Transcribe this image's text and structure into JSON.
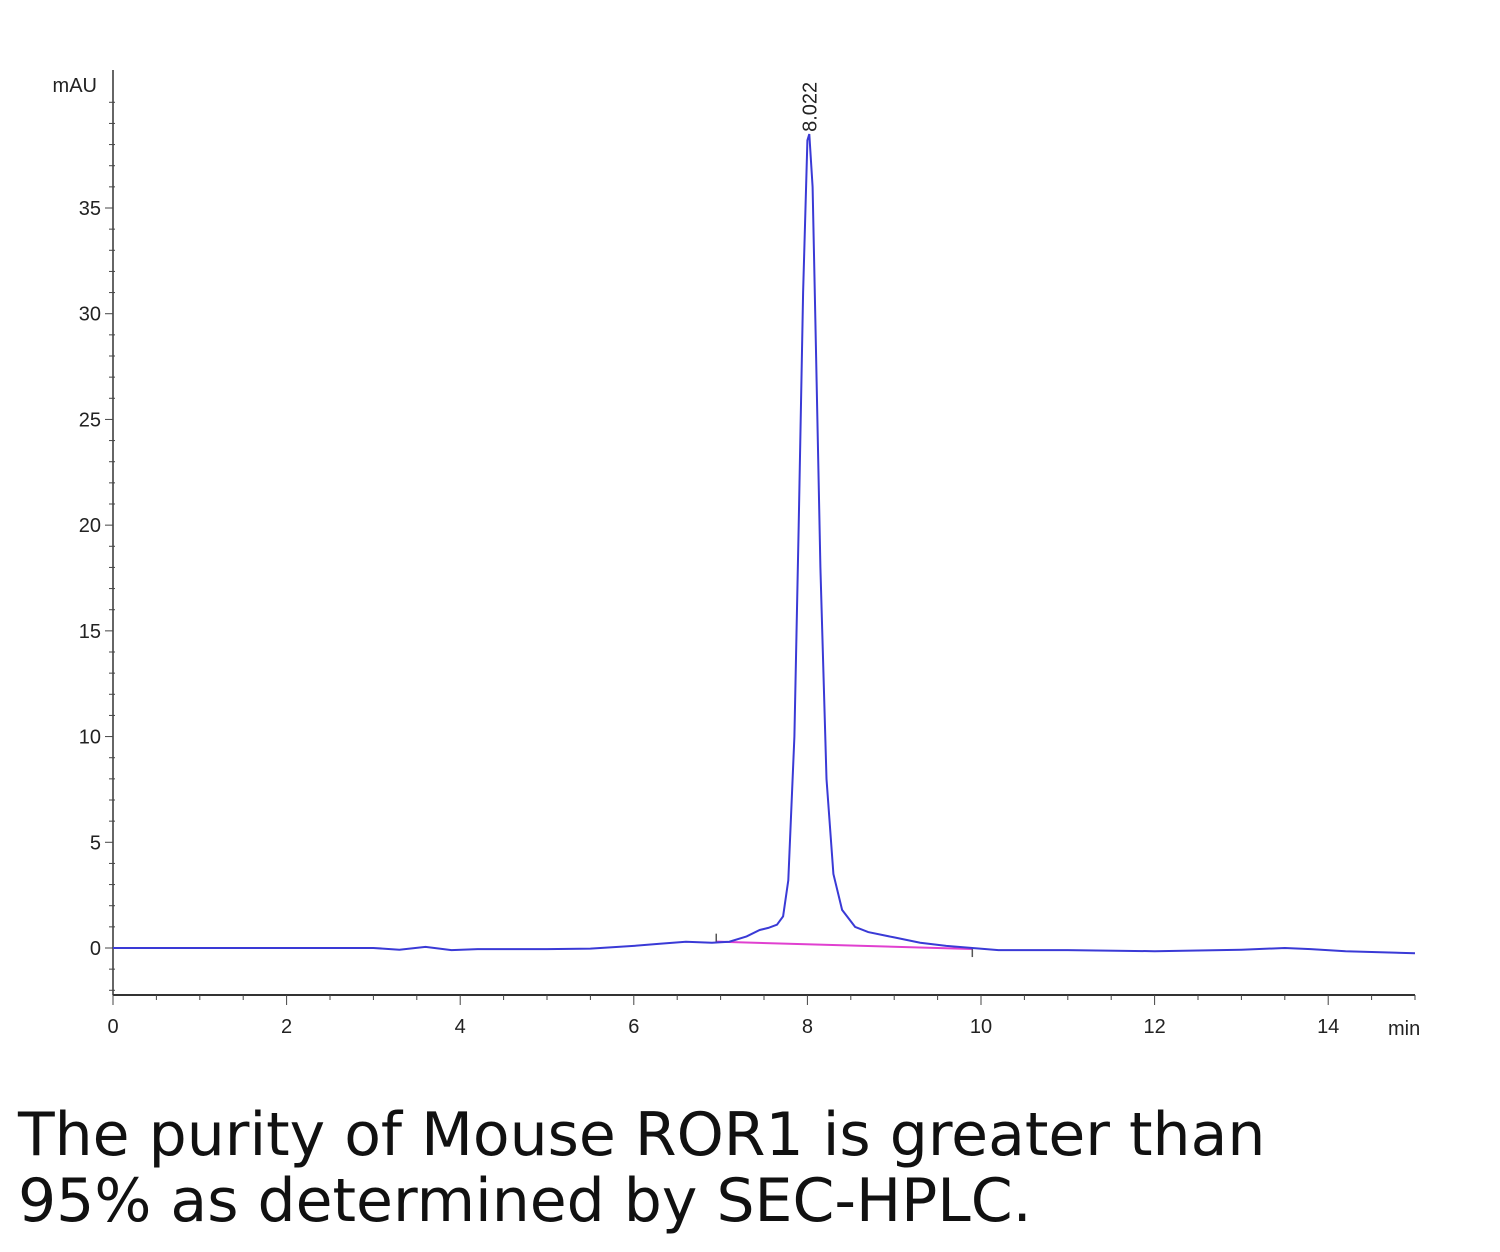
{
  "chart_data": {
    "type": "line",
    "title": "",
    "xlabel": "min",
    "ylabel": "mAU",
    "xlim": [
      0,
      15
    ],
    "ylim": [
      -2.2,
      41
    ],
    "x_ticks": [
      0,
      2,
      4,
      6,
      8,
      10,
      12,
      14
    ],
    "y_ticks": [
      0,
      5,
      10,
      15,
      20,
      25,
      30,
      35
    ],
    "grid": false,
    "peak_label": "8.022",
    "series": [
      {
        "color": "#3a3ad6",
        "x": [
          0,
          1,
          2,
          3,
          3.3,
          3.6,
          3.9,
          4.2,
          5,
          5.5,
          6,
          6.3,
          6.6,
          6.9,
          7.1,
          7.3,
          7.45,
          7.55,
          7.65,
          7.72,
          7.78,
          7.85,
          7.9,
          7.95,
          8.0,
          8.022,
          8.06,
          8.1,
          8.15,
          8.22,
          8.3,
          8.4,
          8.55,
          8.7,
          9.0,
          9.3,
          9.6,
          9.9,
          10.2,
          11,
          12,
          13,
          13.5,
          13.8,
          14.2,
          14.6,
          15.0
        ],
        "y": [
          0,
          0,
          0,
          0,
          -0.08,
          0.05,
          -0.1,
          -0.05,
          -0.05,
          -0.03,
          0.1,
          0.2,
          0.3,
          0.25,
          0.3,
          0.55,
          0.85,
          0.95,
          1.1,
          1.5,
          3.2,
          10,
          20,
          31,
          38.2,
          38.5,
          36,
          28,
          18,
          8,
          3.5,
          1.8,
          1.0,
          0.75,
          0.5,
          0.25,
          0.1,
          0.0,
          -0.1,
          -0.1,
          -0.15,
          -0.08,
          0.0,
          -0.05,
          -0.15,
          -0.2,
          -0.25
        ]
      }
    ],
    "baseline": {
      "color": "#e040d0",
      "x": [
        6.95,
        9.9
      ],
      "y": [
        0.3,
        -0.05
      ]
    }
  },
  "caption": {
    "line1": "The purity of Mouse ROR1 is greater than",
    "line2": "95% as determined by SEC-HPLC."
  }
}
